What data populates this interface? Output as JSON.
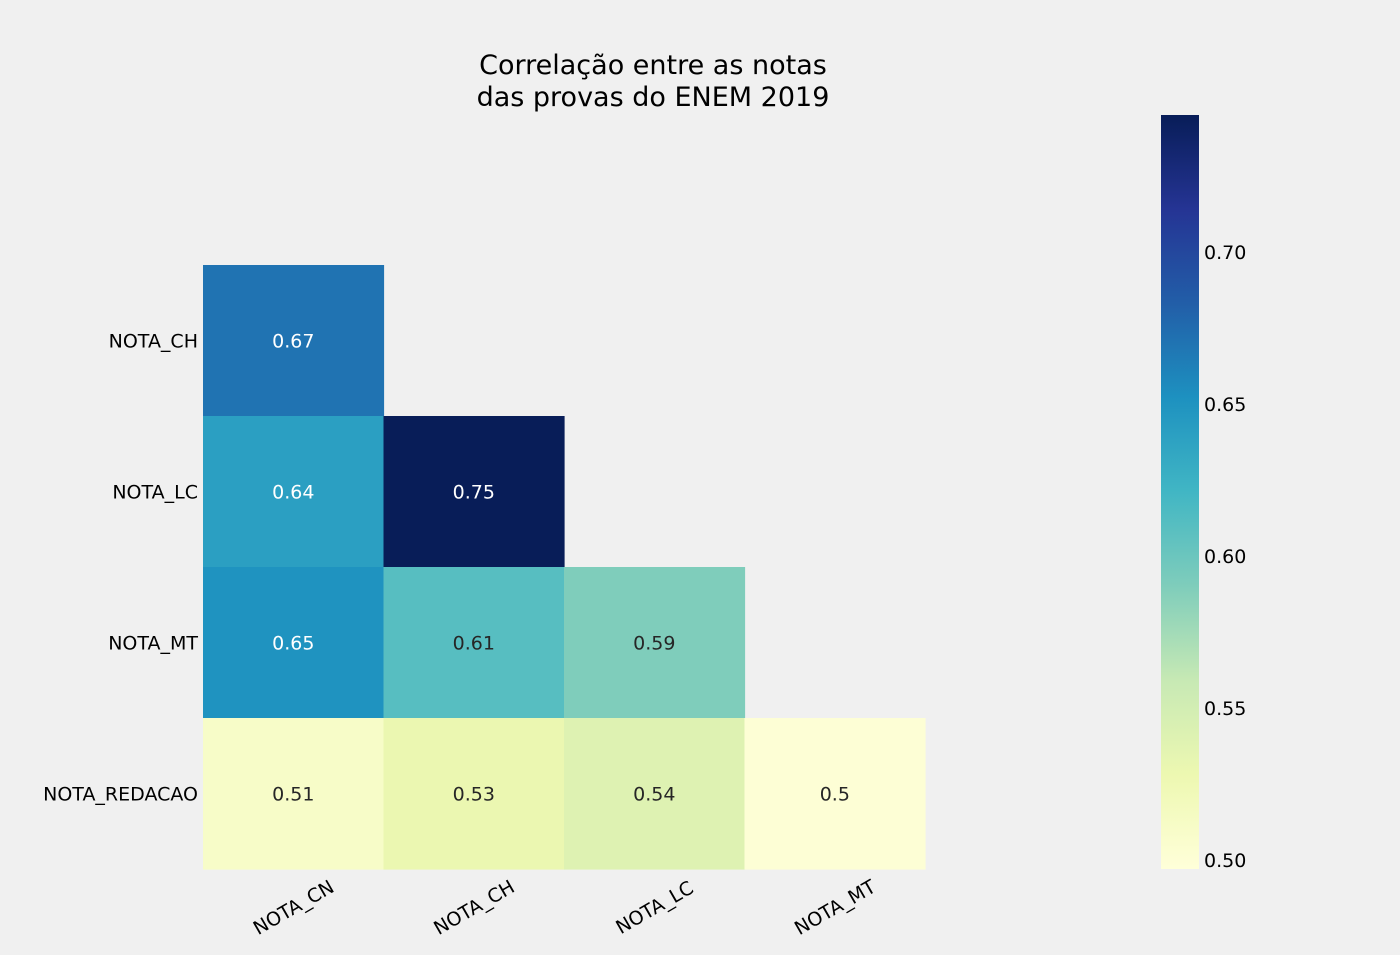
{
  "chart_data": {
    "type": "heatmap",
    "title": [
      "Correlação entre as notas",
      "das provas do ENEM 2019"
    ],
    "rows": [
      "NOTA_CH",
      "NOTA_LC",
      "NOTA_MT",
      "NOTA_REDACAO"
    ],
    "columns": [
      "NOTA_CN",
      "NOTA_CH",
      "NOTA_LC",
      "NOTA_MT"
    ],
    "values": [
      [
        0.67,
        null,
        null,
        null
      ],
      [
        0.64,
        0.75,
        null,
        null
      ],
      [
        0.65,
        0.61,
        0.59,
        null
      ],
      [
        0.51,
        0.53,
        0.54,
        0.5
      ]
    ],
    "labels": [
      [
        "0.67",
        null,
        null,
        null
      ],
      [
        "0.64",
        "0.75",
        null,
        null
      ],
      [
        "0.65",
        "0.61",
        "0.59",
        null
      ],
      [
        "0.51",
        "0.53",
        "0.54",
        "0.5"
      ]
    ],
    "colormap": "YlGnBu",
    "colorbar": {
      "min": 0.497,
      "max": 0.745,
      "ticks": [
        0.5,
        0.55,
        0.6,
        0.65,
        0.7
      ],
      "tick_labels": [
        "0.50",
        "0.55",
        "0.60",
        "0.65",
        "0.70"
      ],
      "position": "right"
    },
    "grid": false,
    "background_color": "#f0f0f0"
  }
}
